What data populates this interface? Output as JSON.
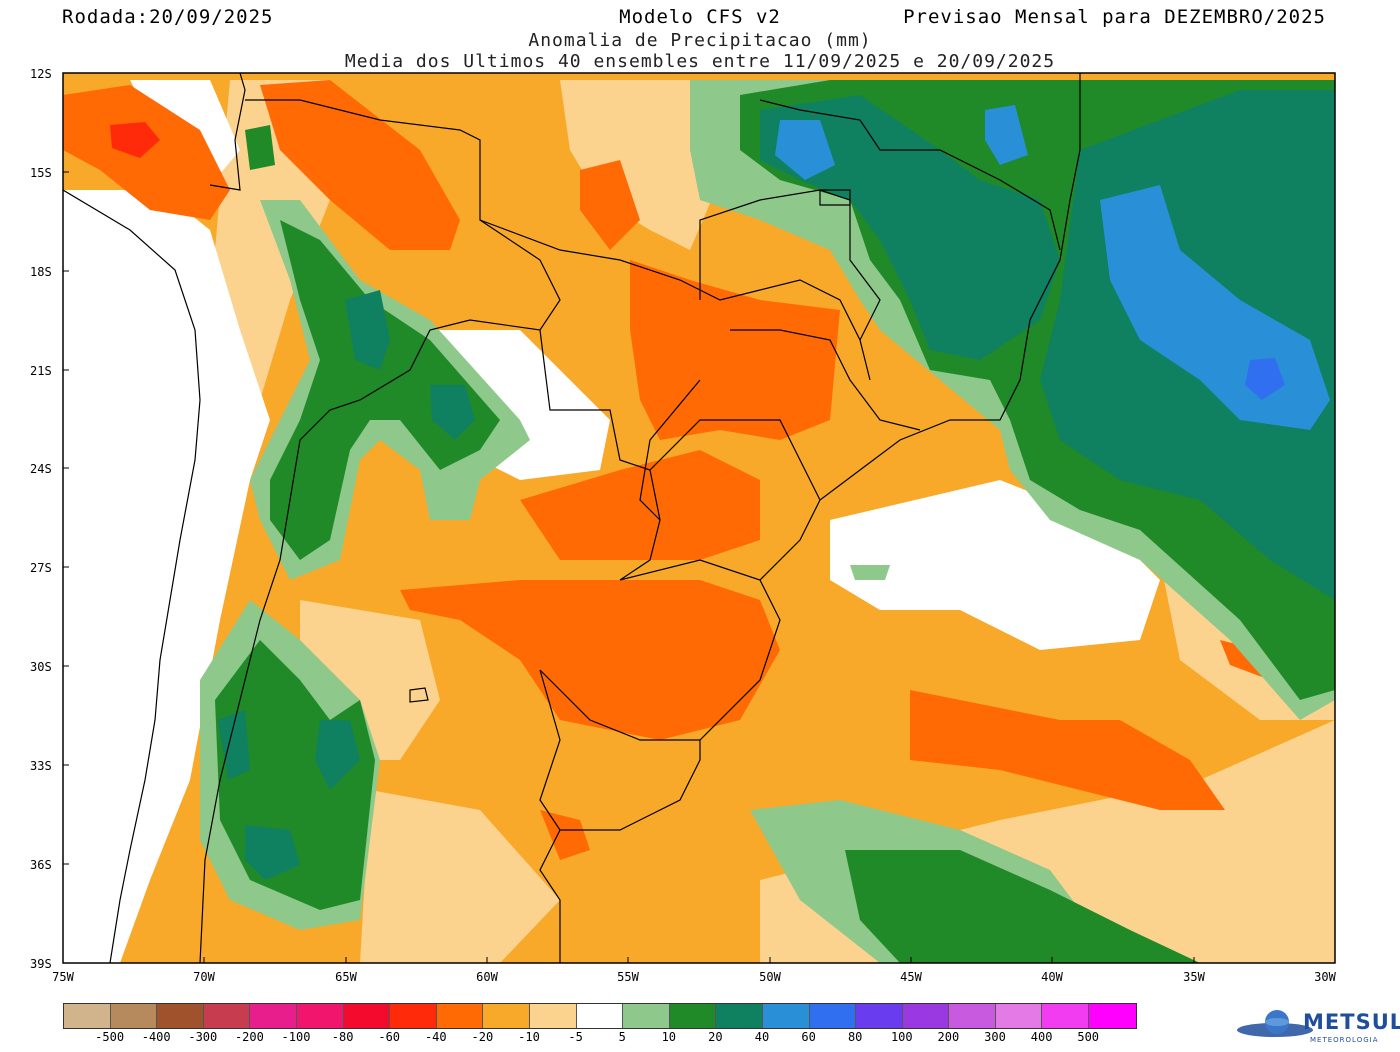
{
  "header": {
    "run_date": "Rodada:20/09/2025",
    "model": "Modelo CFS v2",
    "forecast": "Previsao Mensal para DEZEMBRO/2025",
    "subtitle1": "Anomalia de Precipitacao (mm)",
    "subtitle2": "Media dos Ultimos 40 ensembles entre 11/09/2025 e 20/09/2025"
  },
  "axes": {
    "lat_labels": [
      "12S",
      "15S",
      "18S",
      "21S",
      "24S",
      "27S",
      "30S",
      "33S",
      "36S",
      "39S"
    ],
    "lon_labels": [
      "75W",
      "70W",
      "65W",
      "60W",
      "55W",
      "50W",
      "45W",
      "40W",
      "35W",
      "30W"
    ]
  },
  "legend": {
    "colors": [
      "#d2b48c",
      "#b78a5e",
      "#a0522d",
      "#c83c50",
      "#e81e8c",
      "#f2156e",
      "#f40a2c",
      "#ff2a0a",
      "#ff6a05",
      "#f9a92a",
      "#fbd28e",
      "#ffffff",
      "#8ec88a",
      "#208a28",
      "#0f8060",
      "#2990d8",
      "#2f6ff0",
      "#6a3cf0",
      "#9a38e2",
      "#c85ae0",
      "#e47ae6",
      "#f23cf2",
      "#ff00ff"
    ],
    "labels": [
      "-500",
      "-400",
      "-300",
      "-200",
      "-100",
      "-80",
      "-60",
      "-40",
      "-20",
      "-10",
      "-5",
      "5",
      "10",
      "20",
      "40",
      "60",
      "80",
      "100",
      "200",
      "300",
      "400",
      "500"
    ]
  },
  "palette": {
    "light_orange": "#fbd28e",
    "orange": "#f9a92a",
    "dark_orange": "#ff6a05",
    "red": "#ff2a0a",
    "light_green": "#8ec88a",
    "green": "#208a28",
    "dark_green": "#0f8060",
    "blue": "#2990d8",
    "royal_blue": "#2f6ff0"
  },
  "brand": {
    "name": "METSUL",
    "tagline": "METEOROLOGIA"
  }
}
